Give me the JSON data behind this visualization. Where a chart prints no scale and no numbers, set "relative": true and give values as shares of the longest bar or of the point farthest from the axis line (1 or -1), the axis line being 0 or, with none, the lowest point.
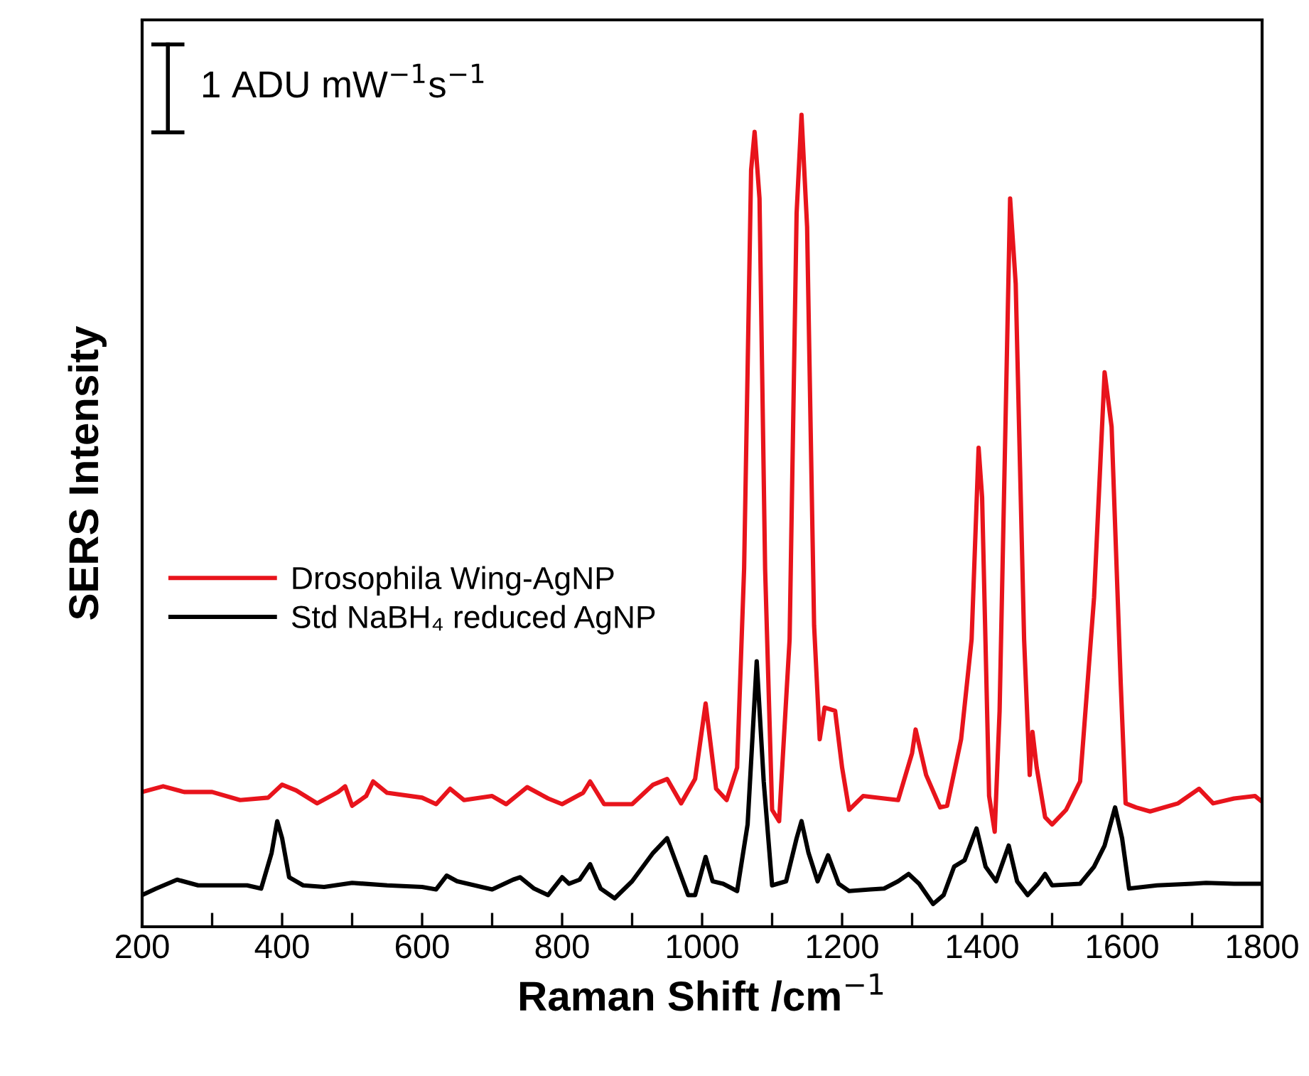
{
  "chart_data": {
    "type": "line",
    "relative": true,
    "xlabel": "Raman Shift /cm$^{−1}$",
    "ylabel": "SERS Intensity",
    "annotations": [
      "1 ADU mW$^{−1}$s$^{−1}$"
    ],
    "xlim": [
      200,
      1800
    ],
    "xticks": [
      200,
      {
        "value": 300,
        "label": null
      },
      400,
      {
        "value": 500,
        "label": null
      },
      600,
      {
        "value": 700,
        "label": null
      },
      800,
      {
        "value": 900,
        "label": null
      },
      1000,
      {
        "value": 1100,
        "label": null
      },
      1200,
      {
        "value": 1300,
        "label": null
      },
      1400,
      {
        "value": 1500,
        "label": null
      },
      1600,
      {
        "value": 1700,
        "label": null
      },
      1800
    ],
    "legend": "left",
    "grid": false,
    "tick_labels": "x",
    "series": [
      {
        "name": "Drosophila Wing-AgNP",
        "color": "#e8141c",
        "x": [
          200,
          230,
          260,
          300,
          340,
          380,
          400,
          420,
          450,
          480,
          490,
          500,
          520,
          530,
          550,
          600,
          620,
          640,
          660,
          700,
          720,
          750,
          780,
          800,
          830,
          840,
          860,
          900,
          930,
          950,
          970,
          990,
          1005,
          1020,
          1035,
          1050,
          1060,
          1070,
          1075,
          1082,
          1090,
          1100,
          1110,
          1125,
          1135,
          1142,
          1150,
          1160,
          1168,
          1175,
          1190,
          1200,
          1210,
          1230,
          1260,
          1280,
          1300,
          1305,
          1320,
          1340,
          1350,
          1370,
          1385,
          1395,
          1400,
          1410,
          1418,
          1425,
          1440,
          1448,
          1460,
          1468,
          1472,
          1478,
          1490,
          1500,
          1520,
          1540,
          1560,
          1575,
          1585,
          1598,
          1605,
          1620,
          1640,
          1680,
          1710,
          1730,
          1760,
          1790,
          1800
        ],
        "values": [
          0.166,
          0.173,
          0.166,
          0.166,
          0.156,
          0.159,
          0.175,
          0.168,
          0.152,
          0.166,
          0.173,
          0.149,
          0.161,
          0.179,
          0.165,
          0.159,
          0.151,
          0.17,
          0.156,
          0.161,
          0.151,
          0.172,
          0.158,
          0.151,
          0.165,
          0.179,
          0.151,
          0.151,
          0.175,
          0.182,
          0.152,
          0.182,
          0.275,
          0.17,
          0.156,
          0.196,
          0.441,
          0.932,
          0.979,
          0.897,
          0.441,
          0.144,
          0.13,
          0.354,
          0.879,
          1,
          0.862,
          0.371,
          0.231,
          0.27,
          0.266,
          0.196,
          0.144,
          0.161,
          0.158,
          0.156,
          0.214,
          0.243,
          0.187,
          0.147,
          0.149,
          0.231,
          0.354,
          0.59,
          0.529,
          0.161,
          0.117,
          0.266,
          0.897,
          0.792,
          0.354,
          0.187,
          0.24,
          0.196,
          0.135,
          0.126,
          0.144,
          0.179,
          0.406,
          0.683,
          0.616,
          0.301,
          0.152,
          0.147,
          0.142,
          0.152,
          0.17,
          0.152,
          0.158,
          0.161,
          0.154
        ]
      },
      {
        "name": "Std NaBH₄ reduced AgNP",
        "color": "#000000",
        "x": [
          200,
          220,
          250,
          280,
          300,
          350,
          370,
          385,
          393,
          400,
          410,
          430,
          460,
          500,
          550,
          600,
          620,
          635,
          650,
          700,
          730,
          740,
          760,
          780,
          800,
          810,
          825,
          840,
          855,
          875,
          900,
          930,
          950,
          965,
          980,
          990,
          1005,
          1015,
          1030,
          1050,
          1065,
          1078,
          1088,
          1100,
          1120,
          1135,
          1142,
          1152,
          1165,
          1180,
          1195,
          1210,
          1240,
          1260,
          1280,
          1295,
          1310,
          1330,
          1345,
          1360,
          1375,
          1392,
          1405,
          1420,
          1438,
          1450,
          1465,
          1480,
          1490,
          1500,
          1540,
          1560,
          1575,
          1590,
          1600,
          1610,
          1650,
          1700,
          1720,
          1760,
          1800
        ],
        "values": [
          0.039,
          0.047,
          0.058,
          0.051,
          0.051,
          0.051,
          0.047,
          0.091,
          0.13,
          0.109,
          0.061,
          0.051,
          0.049,
          0.054,
          0.051,
          0.049,
          0.046,
          0.063,
          0.056,
          0.046,
          0.058,
          0.061,
          0.047,
          0.039,
          0.061,
          0.053,
          0.058,
          0.077,
          0.047,
          0.035,
          0.056,
          0.091,
          0.109,
          0.074,
          0.039,
          0.039,
          0.086,
          0.056,
          0.053,
          0.044,
          0.126,
          0.327,
          0.179,
          0.051,
          0.056,
          0.109,
          0.13,
          0.091,
          0.056,
          0.088,
          0.053,
          0.044,
          0.046,
          0.047,
          0.056,
          0.065,
          0.053,
          0.028,
          0.039,
          0.074,
          0.082,
          0.121,
          0.074,
          0.056,
          0.1,
          0.056,
          0.039,
          0.053,
          0.065,
          0.051,
          0.053,
          0.074,
          0.1,
          0.147,
          0.109,
          0.047,
          0.051,
          0.053,
          0.054,
          0.053,
          0.053
        ]
      }
    ]
  }
}
